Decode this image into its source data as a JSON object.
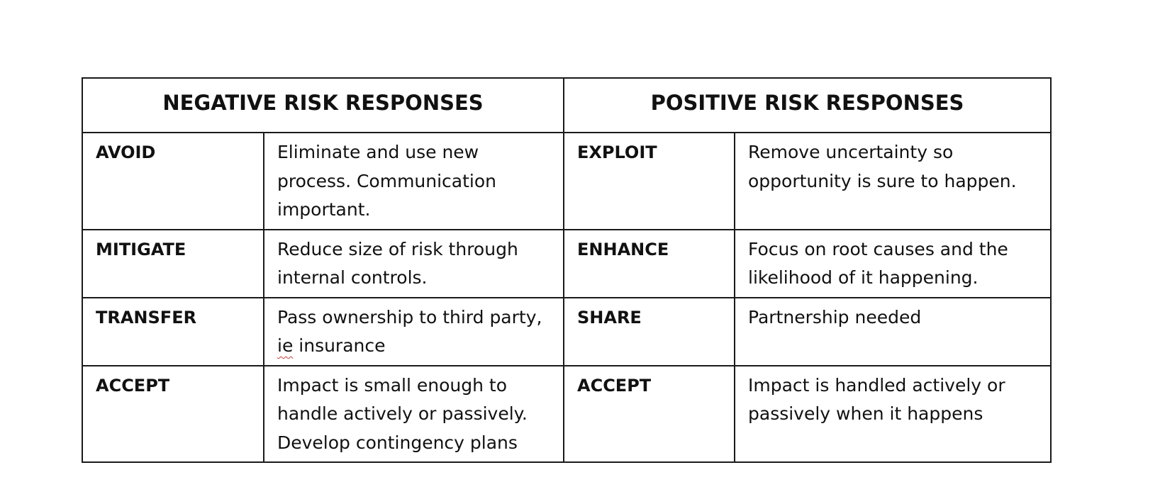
{
  "table": {
    "headers": {
      "negative": "NEGATIVE RISK RESPONSES",
      "positive": "POSITIVE RISK RESPONSES"
    },
    "rows": [
      {
        "neg_term": "AVOID",
        "neg_desc": "Eliminate and use new process.  Communication important.",
        "pos_term": "EXPLOIT",
        "pos_desc": "Remove uncertainty so opportunity is sure to happen."
      },
      {
        "neg_term": "MITIGATE",
        "neg_desc": "Reduce size of risk through internal controls.",
        "pos_term": "ENHANCE",
        "pos_desc": "Focus on root causes and the likelihood of it happening."
      },
      {
        "neg_term": "TRANSFER",
        "neg_desc_pre": "Pass ownership to third party, ",
        "neg_desc_flag": "ie",
        "neg_desc_post": " insurance",
        "pos_term": "SHARE",
        "pos_desc": "Partnership needed"
      },
      {
        "neg_term": "ACCEPT",
        "neg_desc": "Impact is small enough to handle actively or passively. Develop contingency plans",
        "pos_term": "ACCEPT",
        "pos_desc": "Impact is handled actively or passively when it happens"
      }
    ]
  }
}
